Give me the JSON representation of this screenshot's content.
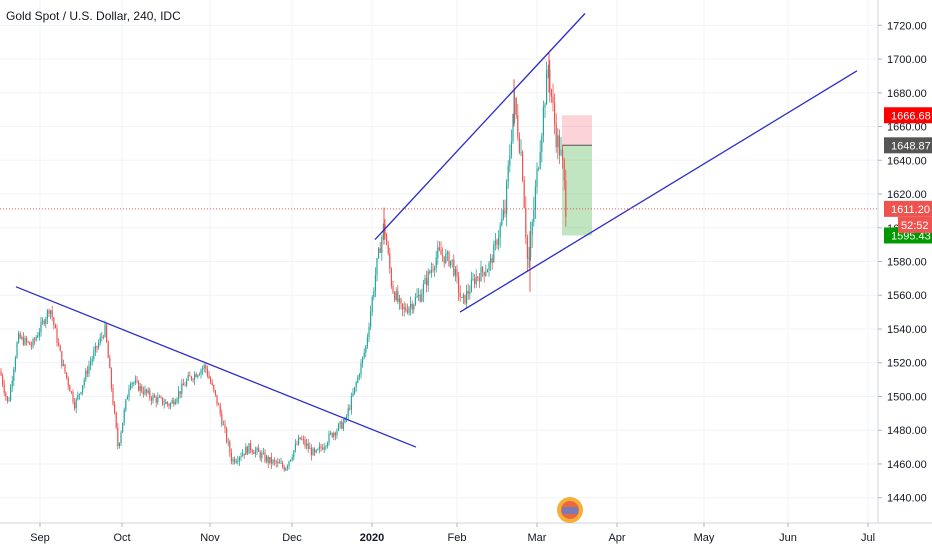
{
  "chart_data": {
    "type": "candlestick",
    "title": "Gold Spot / U.S. Dollar, 240, IDC",
    "y_ticks": [
      1440,
      1460,
      1480,
      1500,
      1520,
      1540,
      1560,
      1580,
      1600,
      1620,
      1640,
      1660,
      1680,
      1700,
      1720
    ],
    "y_tick_labels": [
      "1440.00",
      "1460.00",
      "1480.00",
      "1500.00",
      "1520.00",
      "1540.00",
      "1560.00",
      "1580.00",
      "1600.00",
      "1620.00",
      "1640.00",
      "1660.00",
      "1680.00",
      "1700.00",
      "1720.00"
    ],
    "ylim": [
      1425,
      1735
    ],
    "x_tick_labels": [
      "Sep",
      "Oct",
      "Nov",
      "Dec",
      "2020",
      "Feb",
      "Mar",
      "Apr",
      "May",
      "Jun",
      "Jul"
    ],
    "grid": true,
    "colors": {
      "up": "#26a69a",
      "down": "#ef5350",
      "trend": "#2b2bcc",
      "price_line": "#ef5350"
    },
    "price_labels": [
      {
        "value": 1666.68,
        "label": "1666.68",
        "color": "#ff0000"
      },
      {
        "value": 1648.87,
        "label": "1648.87",
        "color": "#555555"
      },
      {
        "value": 1611.2,
        "label": "1611.20",
        "color": "#ef5350"
      },
      {
        "value": 1595.43,
        "label": "1595.43",
        "color": "#009900"
      }
    ],
    "countdown": "52:52",
    "position": {
      "entry": 1648.87,
      "stop": 1666.68,
      "target": 1595.43
    },
    "current_price": 1611.2
  }
}
